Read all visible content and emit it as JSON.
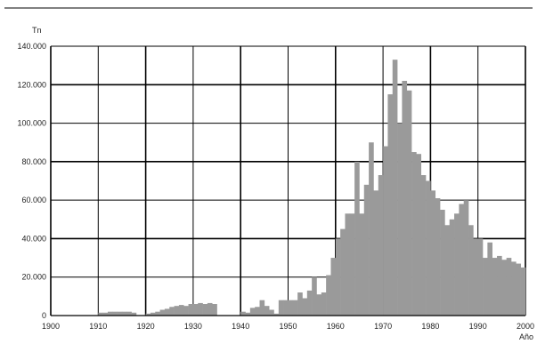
{
  "chart_data": {
    "type": "bar",
    "title": "",
    "xlabel": "Año",
    "ylabel": "Tn",
    "xlim": [
      1900,
      2000
    ],
    "ylim": [
      0,
      140000
    ],
    "x_ticks": [
      "1900",
      "1910",
      "1920",
      "1930",
      "1940",
      "1950",
      "1960",
      "1970",
      "1980",
      "1990",
      "2000"
    ],
    "y_ticks": [
      "0",
      "20.000",
      "40.000",
      "60.000",
      "80.000",
      "100.000",
      "120.000",
      "140.000"
    ],
    "grid": true,
    "legend": "none",
    "colors": {
      "bars": "#9a9a9a",
      "grid": "#000000",
      "axis": "#000000"
    },
    "x": [
      1910,
      1911,
      1912,
      1913,
      1914,
      1915,
      1916,
      1917,
      1918,
      1919,
      1920,
      1921,
      1922,
      1923,
      1924,
      1925,
      1926,
      1927,
      1928,
      1929,
      1930,
      1931,
      1932,
      1933,
      1934,
      1935,
      1936,
      1937,
      1938,
      1939,
      1940,
      1941,
      1942,
      1943,
      1944,
      1945,
      1946,
      1947,
      1948,
      1949,
      1950,
      1951,
      1952,
      1953,
      1954,
      1955,
      1956,
      1957,
      1958,
      1959,
      1960,
      1961,
      1962,
      1963,
      1964,
      1965,
      1966,
      1967,
      1968,
      1969,
      1970,
      1971,
      1972,
      1973,
      1974,
      1975,
      1976,
      1977,
      1978,
      1979,
      1980,
      1981,
      1982,
      1983,
      1984,
      1985,
      1986,
      1987,
      1988,
      1989,
      1990,
      1991,
      1992,
      1993,
      1994,
      1995,
      1996,
      1997,
      1998,
      1999
    ],
    "values": [
      1500,
      1500,
      2000,
      2000,
      2000,
      2000,
      2000,
      1500,
      0,
      0,
      1000,
      1500,
      2000,
      3000,
      3500,
      4500,
      5000,
      5500,
      5000,
      6000,
      6000,
      6500,
      6000,
      6500,
      6000,
      0,
      0,
      0,
      0,
      0,
      2000,
      1500,
      4000,
      4500,
      8000,
      5000,
      3000,
      1000,
      8000,
      8000,
      8000,
      8000,
      12000,
      9000,
      13000,
      20000,
      11000,
      12000,
      21000,
      30000,
      40000,
      45000,
      53000,
      53000,
      80000,
      53000,
      68000,
      90000,
      65000,
      73000,
      88000,
      115000,
      133000,
      100000,
      122000,
      117000,
      85000,
      84000,
      73000,
      70000,
      65000,
      61000,
      55000,
      47000,
      50000,
      53000,
      58000,
      60000,
      47000,
      40000,
      40000,
      30000,
      38000,
      30000,
      31000,
      29000,
      30000,
      28000,
      27000,
      25000
    ]
  }
}
